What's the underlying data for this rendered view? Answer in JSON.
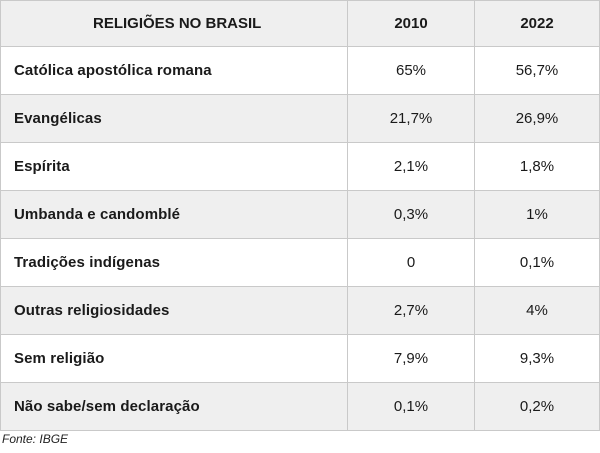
{
  "table": {
    "headers": [
      "RELIGIÕES NO BRASIL",
      "2010",
      "2022"
    ],
    "rows": [
      {
        "name": "Católica apostólica romana",
        "y2010": "65%",
        "y2022": "56,7%"
      },
      {
        "name": "Evangélicas",
        "y2010": "21,7%",
        "y2022": "26,9%"
      },
      {
        "name": "Espírita",
        "y2010": "2,1%",
        "y2022": "1,8%"
      },
      {
        "name": "Umbanda e candomblé",
        "y2010": "0,3%",
        "y2022": "1%"
      },
      {
        "name": "Tradições indígenas",
        "y2010": "0",
        "y2022": "0,1%"
      },
      {
        "name": "Outras religiosidades",
        "y2010": "2,7%",
        "y2022": "4%"
      },
      {
        "name": "Sem religião",
        "y2010": "7,9%",
        "y2022": "9,3%"
      },
      {
        "name": "Não sabe/sem declaração",
        "y2010": "0,1%",
        "y2022": "0,2%"
      }
    ]
  },
  "source": "Fonte: IBGE",
  "colors": {
    "header_bg": "#efefef",
    "stripe_bg": "#efefef",
    "border": "#c9c9c9",
    "text": "#1a1a1a"
  }
}
